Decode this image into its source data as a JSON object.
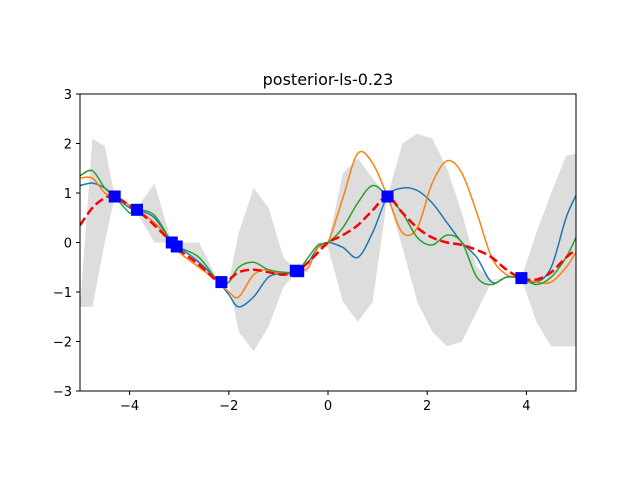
{
  "chart_data": {
    "type": "line",
    "title": "posterior-ls-0.23",
    "xlabel": "",
    "ylabel": "",
    "xlim": [
      -5,
      5
    ],
    "ylim": [
      -3,
      3
    ],
    "grid": false,
    "x_ticks": [
      -4,
      -2,
      0,
      2,
      4
    ],
    "x_tick_labels": [
      "−4",
      "−2",
      "0",
      "2",
      "4"
    ],
    "y_ticks": [
      -3,
      -2,
      -1,
      0,
      1,
      2,
      3
    ],
    "y_tick_labels": [
      "−3",
      "−2",
      "−1",
      "0",
      "1",
      "2",
      "3"
    ],
    "x": [
      -5.0,
      -4.75,
      -4.5,
      -4.3,
      -4.0,
      -3.85,
      -3.5,
      -3.15,
      -3.0,
      -2.6,
      -2.2,
      -2.0,
      -1.8,
      -1.5,
      -1.2,
      -0.9,
      -0.62,
      -0.4,
      -0.2,
      0.0,
      0.3,
      0.6,
      0.9,
      1.2,
      1.5,
      1.8,
      2.1,
      2.4,
      2.7,
      3.0,
      3.3,
      3.6,
      3.9,
      4.2,
      4.5,
      4.8,
      5.0
    ],
    "uncertainty_band": {
      "color": "#dddddd",
      "upper": [
        -1.3,
        2.1,
        1.95,
        0.93,
        0.66,
        0.68,
        1.2,
        0.0,
        0.0,
        0.0,
        -0.8,
        -0.8,
        0.2,
        1.1,
        0.7,
        -0.3,
        -0.58,
        -0.5,
        0.0,
        0.0,
        1.4,
        1.7,
        1.3,
        0.93,
        2.0,
        2.2,
        2.1,
        1.5,
        0.6,
        -0.5,
        -0.75,
        -0.72,
        -0.72,
        0.2,
        1.0,
        1.75,
        1.8
      ],
      "lower": [
        -1.3,
        -1.3,
        0.0,
        0.93,
        0.66,
        0.6,
        0.0,
        0.0,
        0.0,
        -0.5,
        -0.8,
        -0.8,
        -1.8,
        -2.2,
        -1.7,
        -0.9,
        -0.58,
        -0.6,
        -0.1,
        -0.1,
        -1.2,
        -1.6,
        -1.2,
        0.93,
        -0.1,
        -1.2,
        -1.8,
        -2.1,
        -2.0,
        -1.4,
        -0.78,
        -0.72,
        -0.72,
        -1.6,
        -2.1,
        -2.1,
        -2.1
      ]
    },
    "series": [
      {
        "color": "#1f77b4",
        "style": "solid",
        "values": [
          1.15,
          1.2,
          1.1,
          0.93,
          0.7,
          0.66,
          0.5,
          0.0,
          -0.1,
          -0.4,
          -0.8,
          -1.05,
          -1.3,
          -1.1,
          -0.7,
          -0.62,
          -0.58,
          -0.4,
          -0.1,
          0.0,
          -0.1,
          -0.3,
          0.2,
          0.93,
          1.1,
          1.05,
          0.8,
          0.4,
          0.0,
          -0.3,
          -0.8,
          -0.7,
          -0.72,
          -0.8,
          -0.5,
          0.5,
          0.95
        ]
      },
      {
        "color": "#ff7f0e",
        "style": "solid",
        "values": [
          1.3,
          1.3,
          1.0,
          0.93,
          0.75,
          0.66,
          0.4,
          0.0,
          -0.2,
          -0.5,
          -0.8,
          -1.0,
          -1.1,
          -0.65,
          -0.55,
          -0.65,
          -0.58,
          -0.5,
          -0.1,
          0.0,
          0.9,
          1.8,
          1.6,
          0.93,
          0.2,
          0.3,
          1.2,
          1.65,
          1.4,
          0.6,
          -0.3,
          -0.65,
          -0.72,
          -0.8,
          -0.8,
          -0.5,
          -0.2
        ]
      },
      {
        "color": "#2ca02c",
        "style": "solid",
        "values": [
          1.35,
          1.45,
          1.1,
          0.93,
          0.6,
          0.66,
          0.55,
          0.0,
          -0.1,
          -0.3,
          -0.8,
          -0.8,
          -0.5,
          -0.4,
          -0.55,
          -0.6,
          -0.58,
          -0.3,
          -0.05,
          0.0,
          0.3,
          0.8,
          1.15,
          0.93,
          0.6,
          0.1,
          -0.05,
          0.15,
          0.0,
          -0.7,
          -0.85,
          -0.7,
          -0.72,
          -0.85,
          -0.7,
          -0.3,
          0.1
        ]
      },
      {
        "color": "#ff0000",
        "style": "dashed",
        "values": [
          0.35,
          0.7,
          0.9,
          0.93,
          0.75,
          0.66,
          0.35,
          0.0,
          -0.15,
          -0.45,
          -0.8,
          -0.75,
          -0.6,
          -0.55,
          -0.6,
          -0.65,
          -0.58,
          -0.4,
          -0.2,
          0.0,
          0.15,
          0.35,
          0.65,
          0.93,
          0.6,
          0.3,
          0.1,
          0.0,
          -0.05,
          -0.15,
          -0.3,
          -0.55,
          -0.72,
          -0.75,
          -0.6,
          -0.3,
          -0.15
        ]
      }
    ],
    "observations": {
      "color": "#0000ff",
      "marker": "square",
      "x": [
        -4.3,
        -3.85,
        -3.15,
        -3.05,
        -2.15,
        -0.65,
        -0.6,
        1.2,
        3.9
      ],
      "y": [
        0.93,
        0.66,
        0.0,
        -0.08,
        -0.8,
        -0.57,
        -0.58,
        0.93,
        -0.72
      ]
    }
  }
}
